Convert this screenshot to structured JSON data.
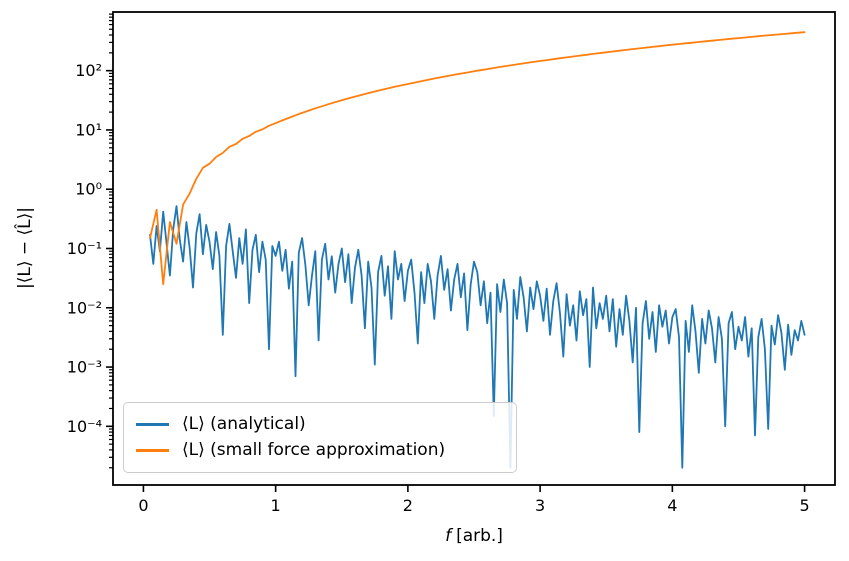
{
  "chart_data": {
    "type": "line",
    "title": "",
    "xlabel_var": "f",
    "xlabel_unit": "[arb.]",
    "ylabel": "|⟨L⟩ − ⟨L̂⟩|",
    "grid": false,
    "legend_position": "lower left",
    "x_axis": {
      "scale": "linear",
      "lim": [
        -0.23,
        5.23
      ],
      "ticks": [
        0,
        1,
        2,
        3,
        4,
        5
      ]
    },
    "y_axis": {
      "scale": "log",
      "lim_log10": [
        -4.99,
        2.99
      ],
      "ticks": [
        {
          "exp": 2,
          "label": "10²"
        },
        {
          "exp": 1,
          "label": "10¹"
        },
        {
          "exp": 0,
          "label": "10⁰"
        },
        {
          "exp": -1,
          "label": "10⁻¹"
        },
        {
          "exp": -2,
          "label": "10⁻²"
        },
        {
          "exp": -3,
          "label": "10⁻³"
        },
        {
          "exp": -4,
          "label": "10⁻⁴"
        }
      ]
    },
    "series": [
      {
        "name": "⟨L⟩ (analytical)",
        "color": "#1f77b4",
        "x_start": 0.05,
        "x_step": 0.025,
        "values": [
          0.17,
          0.055,
          0.24,
          0.09,
          0.42,
          0.12,
          0.035,
          0.21,
          0.52,
          0.14,
          0.06,
          0.28,
          0.1,
          0.022,
          0.18,
          0.38,
          0.08,
          0.25,
          0.13,
          0.045,
          0.19,
          0.075,
          0.0035,
          0.11,
          0.26,
          0.09,
          0.032,
          0.15,
          0.055,
          0.21,
          0.012,
          0.095,
          0.17,
          0.04,
          0.13,
          0.065,
          0.002,
          0.11,
          0.075,
          0.13,
          0.042,
          0.095,
          0.021,
          0.06,
          0.0007,
          0.085,
          0.15,
          0.052,
          0.011,
          0.035,
          0.09,
          0.0028,
          0.065,
          0.12,
          0.03,
          0.074,
          0.018,
          0.055,
          0.1,
          0.027,
          0.08,
          0.012,
          0.048,
          0.095,
          0.035,
          0.0045,
          0.06,
          0.022,
          0.0011,
          0.04,
          0.075,
          0.016,
          0.05,
          0.0065,
          0.09,
          0.03,
          0.055,
          0.013,
          0.042,
          0.065,
          0.018,
          0.0025,
          0.04,
          0.012,
          0.055,
          0.028,
          0.0065,
          0.035,
          0.075,
          0.02,
          0.045,
          0.009,
          0.03,
          0.055,
          0.015,
          0.038,
          0.0042,
          0.025,
          0.06,
          0.04,
          0.011,
          0.028,
          0.0055,
          0.018,
          0.00015,
          0.025,
          0.0085,
          0.03,
          0.012,
          2e-05,
          0.02,
          0.0065,
          0.033,
          0.015,
          0.004,
          0.022,
          0.0095,
          0.028,
          0.016,
          0.006,
          0.021,
          0.0035,
          0.013,
          0.026,
          0.008,
          0.0015,
          0.017,
          0.005,
          0.011,
          0.0028,
          0.019,
          0.0075,
          0.014,
          0.001,
          0.022,
          0.0045,
          0.012,
          0.0065,
          0.016,
          0.004,
          0.014,
          0.0022,
          0.0095,
          0.0035,
          0.016,
          0.006,
          0.0012,
          0.01,
          8e-05,
          0.0055,
          0.013,
          0.003,
          0.0085,
          0.0018,
          0.011,
          0.0048,
          0.009,
          0.0025,
          0.007,
          0.0095,
          0.0032,
          2e-05,
          0.006,
          0.0018,
          0.011,
          0.004,
          0.0008,
          0.0065,
          0.0025,
          0.009,
          0.0045,
          0.0012,
          0.007,
          0.003,
          0.0001,
          0.0055,
          0.0085,
          0.002,
          0.0048,
          0.0028,
          0.007,
          0.0015,
          0.0045,
          7e-05,
          0.0032,
          0.0065,
          0.002,
          9e-05,
          0.005,
          0.0024,
          0.0075,
          0.0038,
          0.0009,
          0.0052,
          0.0016,
          0.0042,
          0.0028,
          0.006,
          0.0035
        ]
      },
      {
        "name": "⟨L⟩ (small force approximation)",
        "color": "#ff7f0e",
        "x_start": 0.05,
        "x_step": 0.05,
        "values": [
          0.15,
          0.45,
          0.025,
          0.28,
          0.12,
          0.55,
          0.85,
          1.5,
          2.3,
          2.7,
          3.5,
          4.1,
          5.2,
          5.8,
          7.1,
          7.9,
          9.3,
          10.2,
          11.8,
          13.0,
          14.5,
          16.0,
          17.7,
          19.4,
          21.2,
          23.2,
          25.1,
          27.2,
          29.4,
          31.7,
          34.1,
          36.6,
          39.1,
          41.8,
          44.6,
          47.4,
          50.3,
          53.4,
          56.5,
          59.7,
          63.0,
          66.5,
          70.0,
          73.7,
          77.4,
          81.2,
          85.2,
          89.2,
          93.3,
          97.6,
          101.9,
          106.4,
          110.9,
          115.6,
          120.3,
          125.2,
          130.1,
          135.2,
          140.4,
          145.7,
          151.0,
          156.5,
          162.1,
          167.8,
          173.6,
          179.5,
          185.6,
          191.9,
          198.2,
          204.6,
          211.0,
          217.6,
          224.2,
          231.0,
          237.9,
          244.9,
          252.0,
          259.2,
          266.5,
          274.0,
          281.5,
          289.2,
          297.0,
          304.9,
          312.9,
          321.0,
          329.2,
          337.6,
          346.0,
          354.6,
          363.3,
          372.1,
          381.0,
          390.0,
          399.2,
          408.4,
          417.8,
          427.3,
          436.9,
          446.6
        ]
      }
    ]
  }
}
